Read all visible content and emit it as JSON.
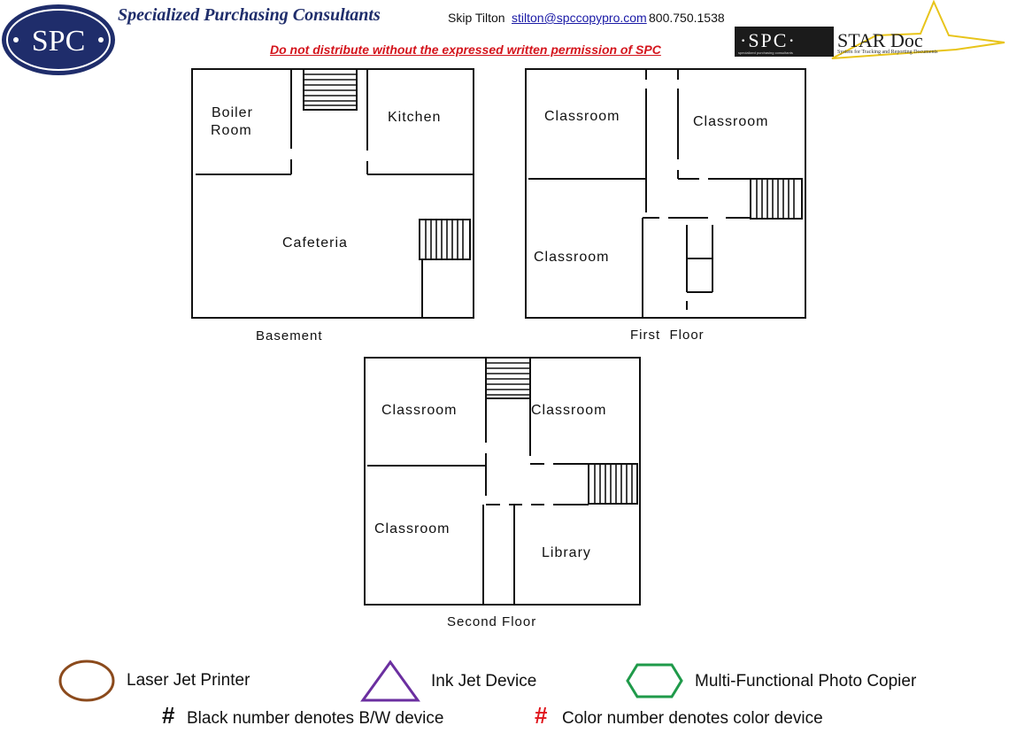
{
  "header": {
    "logo_text": "SPC",
    "company_name": "Specialized Purchasing Consultants",
    "contact_name": "Skip Tilton",
    "contact_email": "stilton@spccopypro.com",
    "contact_phone": "800.750.1538",
    "warning": "Do not distribute without the expressed written permission of SPC",
    "stardoc_brand": "·SPC·",
    "stardoc_brand_tagline": "specialized purchasing consultants",
    "stardoc_name": "STAR Doc",
    "stardoc_tagline": "System for Tracking and Reporting Documents"
  },
  "floors": {
    "basement": {
      "label": "Basement",
      "rooms": {
        "boiler_line1": "Boiler",
        "boiler_line2": "Room",
        "kitchen": "Kitchen",
        "cafeteria": "Cafeteria"
      }
    },
    "first": {
      "label": "First  Floor",
      "rooms": {
        "classroom_top_left": "Classroom",
        "classroom_top_right": "Classroom",
        "classroom_bottom_left": "Classroom"
      }
    },
    "second": {
      "label": "Second Floor",
      "rooms": {
        "classroom_top_left": "Classroom",
        "classroom_top_right": "Classroom",
        "classroom_bottom_left": "Classroom",
        "library": "Library"
      }
    }
  },
  "legend": {
    "laser": "Laser Jet Printer",
    "inkjet": "Ink Jet Device",
    "mfp": "Multi-Functional Photo Copier",
    "bw_symbol": "#",
    "bw_note": "Black number denotes B/W device",
    "color_symbol": "#",
    "color_note": "Color number denotes color device"
  },
  "colors": {
    "brand_navy": "#1f2d6b",
    "warning_red": "#d4141c",
    "laser_brown": "#8b4a1c",
    "inkjet_purple": "#6b2fa0",
    "mfp_green": "#1f9a4a",
    "bw_black": "#111111",
    "color_red": "#e0161c"
  }
}
